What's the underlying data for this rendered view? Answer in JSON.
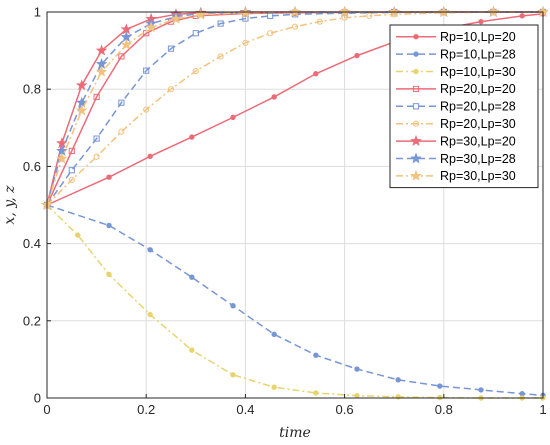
{
  "chart_data": {
    "type": "line",
    "title": "",
    "xlabel": "time",
    "ylabel": "x, y, z",
    "xlim": [
      0,
      1
    ],
    "ylim": [
      0,
      1
    ],
    "xticks": [
      "0",
      "0.2",
      "0.4",
      "0.6",
      "0.8",
      "1"
    ],
    "yticks": [
      "0",
      "0.2",
      "0.4",
      "0.6",
      "0.8",
      "1"
    ],
    "grid": true,
    "legend_position": "top-right",
    "series": [
      {
        "name": "Rp=10,Lp=20",
        "color": "#ec6b76",
        "dash": "solid",
        "marker": "dot",
        "x": [
          0,
          0.125,
          0.208,
          0.292,
          0.375,
          0.458,
          0.542,
          0.625,
          0.708,
          0.792,
          0.875,
          0.958,
          1
        ],
        "y": [
          0.5,
          0.572,
          0.626,
          0.676,
          0.727,
          0.78,
          0.84,
          0.887,
          0.926,
          0.955,
          0.975,
          0.99,
          0.995
        ]
      },
      {
        "name": "Rp=10,Lp=28",
        "color": "#7796d6",
        "dash": "dash",
        "marker": "dot",
        "x": [
          0,
          0.125,
          0.208,
          0.292,
          0.375,
          0.458,
          0.542,
          0.625,
          0.708,
          0.792,
          0.875,
          0.958,
          1
        ],
        "y": [
          0.5,
          0.447,
          0.384,
          0.313,
          0.239,
          0.165,
          0.111,
          0.075,
          0.047,
          0.031,
          0.021,
          0.011,
          0.007
        ]
      },
      {
        "name": "Rp=10,Lp=30",
        "color": "#e7d46f",
        "dash": "dashdot",
        "marker": "dot",
        "x": [
          0,
          0.062,
          0.125,
          0.208,
          0.292,
          0.375,
          0.458,
          0.542,
          0.625,
          0.708,
          0.792,
          0.875,
          0.958,
          1
        ],
        "y": [
          0.5,
          0.422,
          0.32,
          0.216,
          0.124,
          0.06,
          0.028,
          0.013,
          0.006,
          0.003,
          0.001,
          0,
          0,
          0
        ]
      },
      {
        "name": "Rp=20,Lp=20",
        "color": "#ec6b76",
        "dash": "solid",
        "marker": "square",
        "x": [
          0,
          0.05,
          0.1,
          0.15,
          0.2,
          0.25,
          0.3,
          0.4,
          0.5,
          0.6,
          0.7,
          0.8,
          0.9,
          1
        ],
        "y": [
          0.5,
          0.64,
          0.78,
          0.885,
          0.945,
          0.975,
          0.99,
          0.996,
          0.998,
          0.999,
          1,
          1,
          1,
          1
        ]
      },
      {
        "name": "Rp=20,Lp=28",
        "color": "#7796d6",
        "dash": "dash",
        "marker": "square",
        "x": [
          0,
          0.05,
          0.1,
          0.15,
          0.2,
          0.25,
          0.3,
          0.35,
          0.4,
          0.45,
          0.5,
          0.6,
          0.7,
          0.8,
          0.9,
          1
        ],
        "y": [
          0.5,
          0.59,
          0.672,
          0.765,
          0.848,
          0.905,
          0.945,
          0.97,
          0.983,
          0.99,
          0.994,
          0.997,
          0.999,
          1,
          1,
          1
        ]
      },
      {
        "name": "Rp=20,Lp=30",
        "color": "#f4c27c",
        "dash": "dashdot",
        "marker": "circle-open",
        "x": [
          0,
          0.05,
          0.1,
          0.15,
          0.2,
          0.25,
          0.3,
          0.35,
          0.4,
          0.45,
          0.5,
          0.55,
          0.6,
          0.65,
          0.7,
          0.8,
          0.9,
          1
        ],
        "y": [
          0.5,
          0.565,
          0.625,
          0.69,
          0.747,
          0.8,
          0.847,
          0.885,
          0.92,
          0.945,
          0.962,
          0.975,
          0.985,
          0.99,
          0.994,
          0.998,
          1,
          1
        ]
      },
      {
        "name": "Rp=30,Lp=20",
        "color": "#ec6b76",
        "dash": "solid",
        "marker": "star",
        "x": [
          0,
          0.03,
          0.07,
          0.11,
          0.16,
          0.21,
          0.26,
          0.31,
          0.4,
          0.5,
          0.6,
          0.7,
          0.8,
          0.9,
          1
        ],
        "y": [
          0.5,
          0.66,
          0.81,
          0.9,
          0.955,
          0.982,
          0.994,
          0.998,
          1,
          1,
          1,
          1,
          1,
          1,
          1
        ]
      },
      {
        "name": "Rp=30,Lp=28",
        "color": "#7796d6",
        "dash": "dash",
        "marker": "star",
        "x": [
          0,
          0.03,
          0.07,
          0.11,
          0.16,
          0.21,
          0.26,
          0.31,
          0.4,
          0.5,
          0.6,
          0.7,
          0.8,
          0.9,
          1
        ],
        "y": [
          0.5,
          0.64,
          0.765,
          0.865,
          0.935,
          0.97,
          0.988,
          0.996,
          0.999,
          1,
          1,
          1,
          1,
          1,
          1
        ]
      },
      {
        "name": "Rp=30,Lp=30",
        "color": "#f4c27c",
        "dash": "dashdot",
        "marker": "star",
        "x": [
          0,
          0.03,
          0.07,
          0.11,
          0.16,
          0.21,
          0.26,
          0.31,
          0.4,
          0.5,
          0.6,
          0.7,
          0.8,
          0.9,
          1
        ],
        "y": [
          0.5,
          0.62,
          0.745,
          0.845,
          0.915,
          0.96,
          0.982,
          0.993,
          0.998,
          1,
          1,
          1,
          1,
          1,
          1
        ]
      }
    ]
  }
}
